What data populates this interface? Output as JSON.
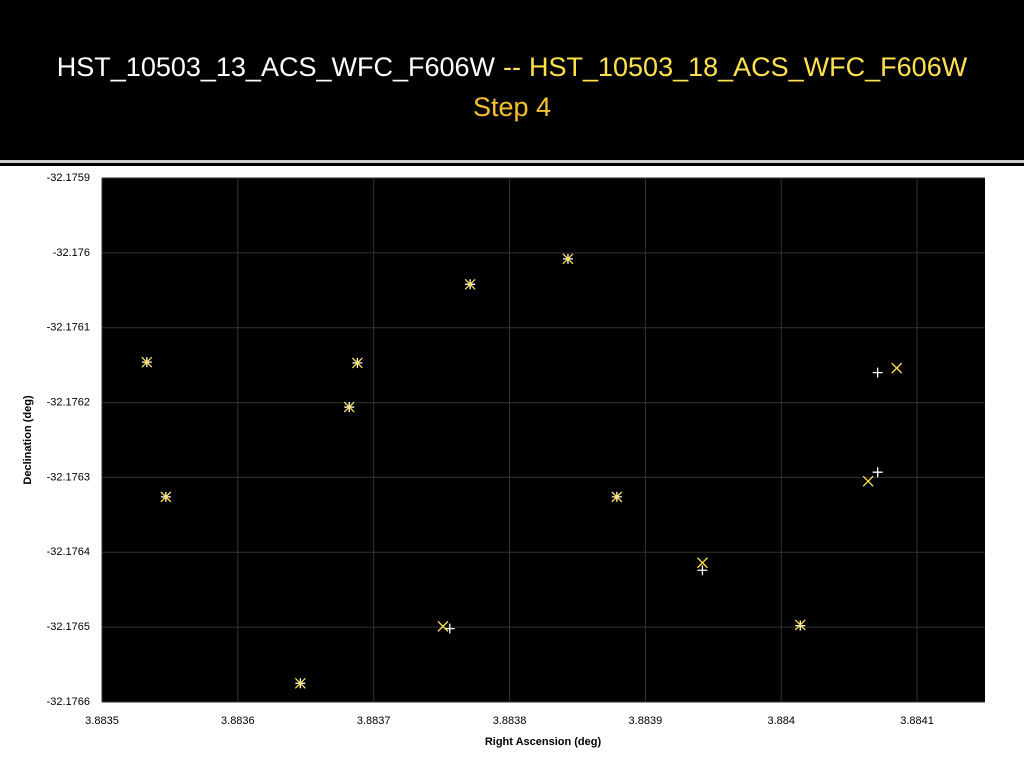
{
  "slide": {
    "title_first": "HST_10503_13_ACS_WFC_F606W",
    "title_separator": "--",
    "title_second": "HST_10503_18_ACS_WFC_F606W",
    "title_step": "Step 4"
  },
  "chart_data": {
    "type": "scatter",
    "x_label": "Right Ascension (deg)",
    "y_label": "Declination (deg)",
    "xlim": [
      3.8835,
      3.88415
    ],
    "xticks": [
      3.8835,
      3.8836,
      3.8837,
      3.8838,
      3.8839,
      3.884,
      3.8841
    ],
    "ylim": [
      -32.1766,
      -32.1759
    ],
    "yticks": [
      -32.1759,
      -32.176,
      -32.1761,
      -32.1762,
      -32.1763,
      -32.1764,
      -32.1765,
      -32.1766
    ],
    "grid": true,
    "series": [
      {
        "color": "#ffffff",
        "marker": "plus",
        "x": [
          3.883533,
          3.883547,
          3.883646,
          3.883682,
          3.883688,
          3.883771,
          3.883756,
          3.883843,
          3.883879,
          3.883942,
          3.884014,
          3.884071,
          3.884071
        ],
        "y": [
          -32.176146,
          -32.176326,
          -32.176575,
          -32.176206,
          -32.176147,
          -32.176042,
          -32.176502,
          -32.176008,
          -32.176326,
          -32.176424,
          -32.176498,
          -32.176293,
          -32.17616
        ]
      },
      {
        "color": "#ffe14d",
        "marker": "cross",
        "x": [
          3.883533,
          3.883547,
          3.883646,
          3.883682,
          3.883688,
          3.883771,
          3.883751,
          3.883843,
          3.883879,
          3.883942,
          3.884014,
          3.884064,
          3.884085
        ],
        "y": [
          -32.176146,
          -32.176326,
          -32.176575,
          -32.176206,
          -32.176147,
          -32.176042,
          -32.176499,
          -32.176008,
          -32.176326,
          -32.176414,
          -32.176497,
          -32.176305,
          -32.176154
        ]
      }
    ]
  }
}
